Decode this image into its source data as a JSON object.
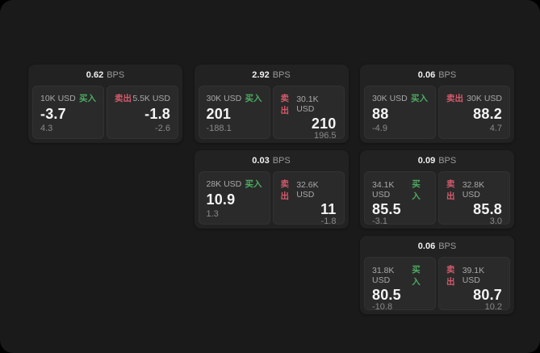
{
  "labels": {
    "bps_unit": "BPS",
    "buy_tag": "买入",
    "sell_tag": "卖出"
  },
  "colors": {
    "background": "#000000",
    "panel": "#1a1a1a",
    "card": "#222222",
    "pane": "#2a2a2a",
    "buy_accent": "#4cab62",
    "sell_accent": "#d45a6b",
    "primary_text": "#f4f4f4",
    "muted_text": "#8a8a8a"
  },
  "cards": [
    {
      "bps": "0.62",
      "buy": {
        "size": "10K USD",
        "price": "-3.7",
        "delta": "4.3"
      },
      "sell": {
        "size": "5.5K USD",
        "price": "-1.8",
        "delta": "-2.6"
      }
    },
    {
      "bps": "2.92",
      "buy": {
        "size": "30K USD",
        "price": "201",
        "delta": "-188.1"
      },
      "sell": {
        "size": "30.1K USD",
        "price": "210",
        "delta": "196.5"
      }
    },
    {
      "bps": "0.06",
      "buy": {
        "size": "30K USD",
        "price": "88",
        "delta": "-4.9"
      },
      "sell": {
        "size": "30K USD",
        "price": "88.2",
        "delta": "4.7"
      }
    },
    {
      "bps": "0.03",
      "buy": {
        "size": "28K USD",
        "price": "10.9",
        "delta": "1.3"
      },
      "sell": {
        "size": "32.6K USD",
        "price": "11",
        "delta": "-1.8"
      }
    },
    {
      "bps": "0.09",
      "buy": {
        "size": "34.1K USD",
        "price": "85.5",
        "delta": "-3.1"
      },
      "sell": {
        "size": "32.8K USD",
        "price": "85.8",
        "delta": "3.0"
      }
    },
    {
      "bps": "0.06",
      "buy": {
        "size": "31.8K USD",
        "price": "80.5",
        "delta": "-10.8"
      },
      "sell": {
        "size": "39.1K USD",
        "price": "80.7",
        "delta": "10.2"
      }
    }
  ]
}
